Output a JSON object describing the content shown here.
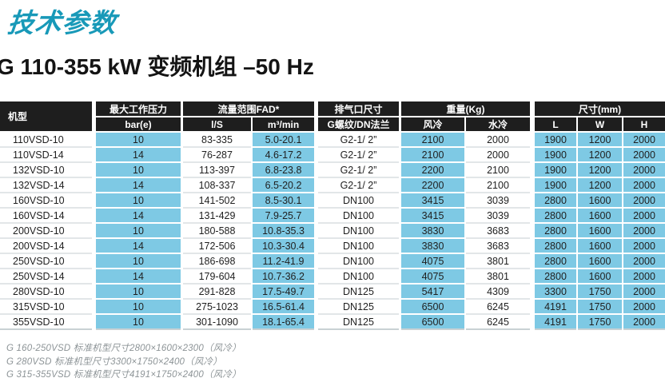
{
  "page": {
    "title": "技术参数",
    "subtitle": "G 110-355 kW 变频机组 –50 Hz"
  },
  "colors": {
    "accent_teal": "#1899b8",
    "header_bg": "#1e1e1e",
    "cell_blue": "#7ec9e4"
  },
  "table": {
    "groups": [
      {
        "label": "机型",
        "col": 0,
        "span": 1,
        "tall": true
      },
      {
        "label": "最大工作压力",
        "col": 1,
        "span": 1
      },
      {
        "label": "流量范围FAD*",
        "col": 2,
        "span": 2
      },
      {
        "label": "排气口尺寸",
        "col": 4,
        "span": 1
      },
      {
        "label": "重量(Kg)",
        "col": 5,
        "span": 2
      },
      {
        "label": "尺寸(mm)",
        "col": 7,
        "span": 3
      }
    ],
    "sub_headers": [
      "bar(e)",
      "l/S",
      "m³/min",
      "G螺纹/DN法兰",
      "风冷",
      "水冷",
      "L",
      "W",
      "H"
    ],
    "col_types": [
      "model",
      "blue",
      "white",
      "blue",
      "white",
      "blue",
      "white",
      "blue",
      "blue",
      "blue"
    ],
    "rows": [
      [
        "110VSD-10",
        "10",
        "83-335",
        "5.0-20.1",
        "G2-1/ 2”",
        "2100",
        "2000",
        "1900",
        "1200",
        "2000"
      ],
      [
        "110VSD-14",
        "14",
        "76-287",
        "4.6-17.2",
        "G2-1/ 2”",
        "2100",
        "2000",
        "1900",
        "1200",
        "2000"
      ],
      [
        "132VSD-10",
        "10",
        "113-397",
        "6.8-23.8",
        "G2-1/ 2”",
        "2200",
        "2100",
        "1900",
        "1200",
        "2000"
      ],
      [
        "132VSD-14",
        "14",
        "108-337",
        "6.5-20.2",
        "G2-1/ 2”",
        "2200",
        "2100",
        "1900",
        "1200",
        "2000"
      ],
      [
        "160VSD-10",
        "10",
        "141-502",
        "8.5-30.1",
        "DN100",
        "3415",
        "3039",
        "2800",
        "1600",
        "2000"
      ],
      [
        "160VSD-14",
        "14",
        "131-429",
        "7.9-25.7",
        "DN100",
        "3415",
        "3039",
        "2800",
        "1600",
        "2000"
      ],
      [
        "200VSD-10",
        "10",
        "180-588",
        "10.8-35.3",
        "DN100",
        "3830",
        "3683",
        "2800",
        "1600",
        "2000"
      ],
      [
        "200VSD-14",
        "14",
        "172-506",
        "10.3-30.4",
        "DN100",
        "3830",
        "3683",
        "2800",
        "1600",
        "2000"
      ],
      [
        "250VSD-10",
        "10",
        "186-698",
        "11.2-41.9",
        "DN100",
        "4075",
        "3801",
        "2800",
        "1600",
        "2000"
      ],
      [
        "250VSD-14",
        "14",
        "179-604",
        "10.7-36.2",
        "DN100",
        "4075",
        "3801",
        "2800",
        "1600",
        "2000"
      ],
      [
        "280VSD-10",
        "10",
        "291-828",
        "17.5-49.7",
        "DN125",
        "5417",
        "4309",
        "3300",
        "1750",
        "2000"
      ],
      [
        "315VSD-10",
        "10",
        "275-1023",
        "16.5-61.4",
        "DN125",
        "6500",
        "6245",
        "4191",
        "1750",
        "2000"
      ],
      [
        "355VSD-10",
        "10",
        "301-1090",
        "18.1-65.4",
        "DN125",
        "6500",
        "6245",
        "4191",
        "1750",
        "2000"
      ]
    ]
  },
  "footnotes": [
    "G 160-250VSD 标准机型尺寸2800×1600×2300（风冷）",
    "G 280VSD 标准机型尺寸3300×1750×2400（风冷）",
    "G 315-355VSD 标准机型尺寸4191×1750×2400（风冷）"
  ]
}
